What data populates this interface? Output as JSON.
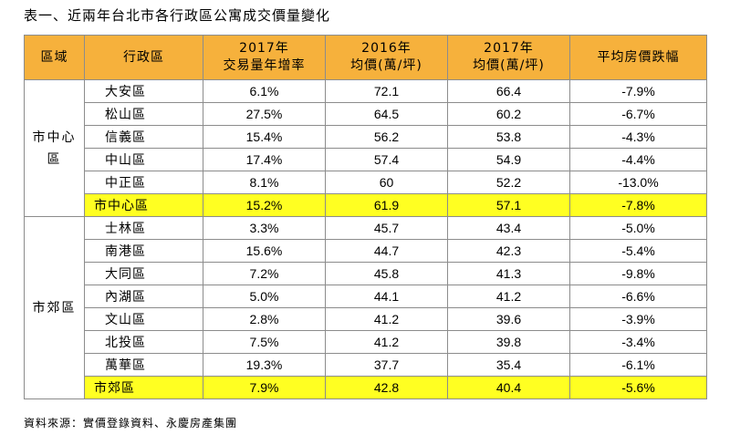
{
  "caption": "表一、近兩年台北市各行政區公寓成交價量變化",
  "source": "資料來源：實價登錄資料、永慶房產集團",
  "headers": {
    "region": "區域",
    "district": "行政區",
    "growth_line1": "2017年",
    "growth_line2": "交易量年增率",
    "p2016_line1": "2016年",
    "p2016_line2": "均價(萬/坪)",
    "p2017_line1": "2017年",
    "p2017_line2": "均價(萬/坪)",
    "change": "平均房價跌幅"
  },
  "groups": [
    {
      "region_line1": "市中心",
      "region_line2": "區",
      "rows": [
        {
          "district": "大安區",
          "growth": "6.1%",
          "p2016": "72.1",
          "p2017": "66.4",
          "change": "-7.9%"
        },
        {
          "district": "松山區",
          "growth": "27.5%",
          "p2016": "64.5",
          "p2017": "60.2",
          "change": "-6.7%"
        },
        {
          "district": "信義區",
          "growth": "15.4%",
          "p2016": "56.2",
          "p2017": "53.8",
          "change": "-4.3%"
        },
        {
          "district": "中山區",
          "growth": "17.4%",
          "p2016": "57.4",
          "p2017": "54.9",
          "change": "-4.4%"
        },
        {
          "district": "中正區",
          "growth": "8.1%",
          "p2016": "60",
          "p2017": "52.2",
          "change": "-13.0%"
        },
        {
          "district": "市中心區",
          "growth": "15.2%",
          "p2016": "61.9",
          "p2017": "57.1",
          "change": "-7.8%"
        }
      ]
    },
    {
      "region_line1": "市郊區",
      "region_line2": "",
      "rows": [
        {
          "district": "士林區",
          "growth": "3.3%",
          "p2016": "45.7",
          "p2017": "43.4",
          "change": "-5.0%"
        },
        {
          "district": "南港區",
          "growth": "15.6%",
          "p2016": "44.7",
          "p2017": "42.3",
          "change": "-5.4%"
        },
        {
          "district": "大同區",
          "growth": "7.2%",
          "p2016": "45.8",
          "p2017": "41.3",
          "change": "-9.8%"
        },
        {
          "district": "內湖區",
          "growth": "5.0%",
          "p2016": "44.1",
          "p2017": "41.2",
          "change": "-6.6%"
        },
        {
          "district": "文山區",
          "growth": "2.8%",
          "p2016": "41.2",
          "p2017": "39.6",
          "change": "-3.9%"
        },
        {
          "district": "北投區",
          "growth": "7.5%",
          "p2016": "41.2",
          "p2017": "39.8",
          "change": "-3.4%"
        },
        {
          "district": "萬華區",
          "growth": "19.3%",
          "p2016": "37.7",
          "p2017": "35.4",
          "change": "-6.1%"
        },
        {
          "district": "市郊區",
          "growth": "7.9%",
          "p2016": "42.8",
          "p2017": "40.4",
          "change": "-5.6%"
        }
      ]
    }
  ],
  "colors": {
    "header_bg": "#f6b13c",
    "subtotal_bg": "#ffff22",
    "border": "#8c8c8c"
  }
}
